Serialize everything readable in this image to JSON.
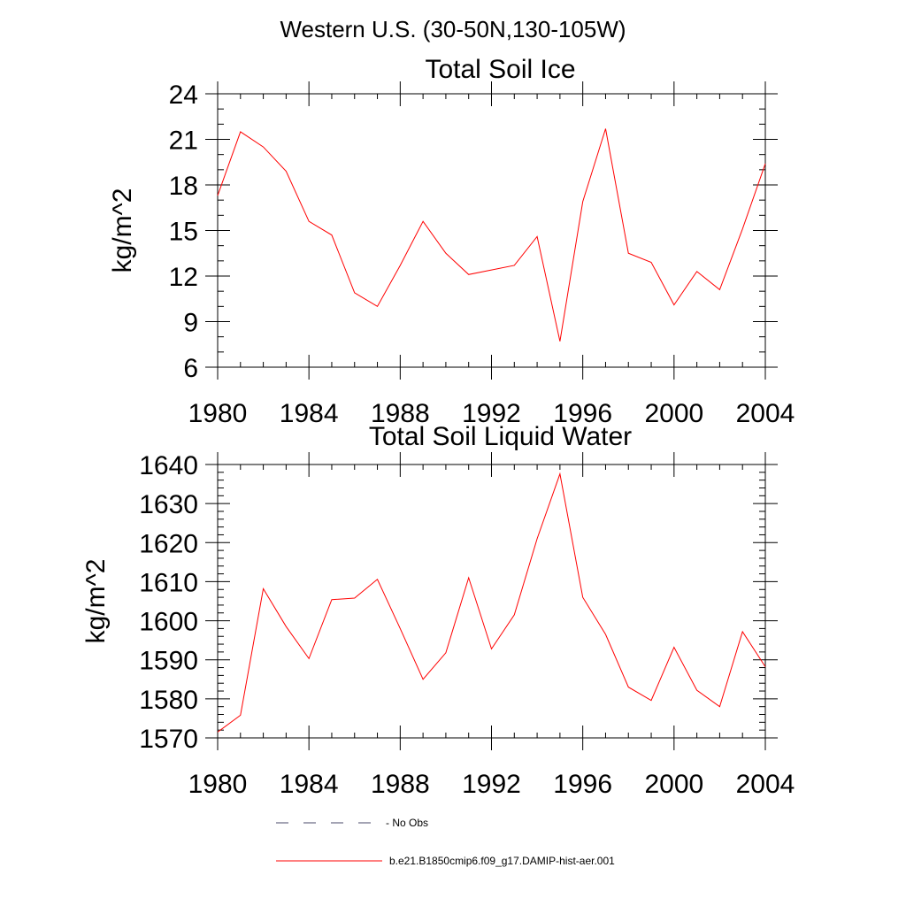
{
  "figure": {
    "title": "Western U.S. (30-50N,130-105W)"
  },
  "chart_data": [
    {
      "type": "line",
      "title": "Total Soil Ice",
      "xlabel": "",
      "ylabel": "kg/m^2",
      "xlim": [
        1980,
        2004
      ],
      "ylim": [
        6,
        24
      ],
      "xticks": [
        1980,
        1984,
        1988,
        1992,
        1996,
        2000,
        2004
      ],
      "xtick_labels": [
        "1980",
        "1984",
        "1988",
        "1992",
        "1996",
        "2000",
        "2004"
      ],
      "yticks": [
        6,
        9,
        12,
        15,
        18,
        21,
        24
      ],
      "ytick_labels": [
        "6",
        "9",
        "12",
        "15",
        "18",
        "21",
        "24"
      ],
      "y_minor_step": 1,
      "x_minor_step": 1,
      "series": [
        {
          "name": "b.e21.B1850cmip6.f09_g17.DAMIP-hist-aer.001",
          "color": "#ff0000",
          "x": [
            1980,
            1981,
            1982,
            1983,
            1984,
            1985,
            1986,
            1987,
            1988,
            1989,
            1990,
            1991,
            1992,
            1993,
            1994,
            1995,
            1996,
            1997,
            1998,
            1999,
            2000,
            2001,
            2002,
            2003,
            2004
          ],
          "values": [
            17.3,
            21.5,
            20.5,
            18.9,
            15.6,
            14.7,
            10.9,
            10.0,
            12.7,
            15.6,
            13.5,
            12.1,
            12.4,
            12.7,
            14.6,
            7.7,
            16.9,
            21.7,
            13.5,
            12.9,
            10.1,
            12.3,
            11.1,
            15.1,
            19.4
          ]
        }
      ]
    },
    {
      "type": "line",
      "title": "Total Soil Liquid Water",
      "xlabel": "",
      "ylabel": "kg/m^2",
      "xlim": [
        1980,
        2004
      ],
      "ylim": [
        1570,
        1640
      ],
      "xticks": [
        1980,
        1984,
        1988,
        1992,
        1996,
        2000,
        2004
      ],
      "xtick_labels": [
        "1980",
        "1984",
        "1988",
        "1992",
        "1996",
        "2000",
        "2004"
      ],
      "yticks": [
        1570,
        1580,
        1590,
        1600,
        1610,
        1620,
        1630,
        1640
      ],
      "ytick_labels": [
        "1570",
        "1580",
        "1590",
        "1600",
        "1610",
        "1620",
        "1630",
        "1640"
      ],
      "y_minor_step": 2,
      "x_minor_step": 1,
      "series": [
        {
          "name": "b.e21.B1850cmip6.f09_g17.DAMIP-hist-aer.001",
          "color": "#ff0000",
          "x": [
            1980,
            1981,
            1982,
            1983,
            1984,
            1985,
            1986,
            1987,
            1988,
            1989,
            1990,
            1991,
            1992,
            1993,
            1994,
            1995,
            1996,
            1997,
            1998,
            1999,
            2000,
            2001,
            2002,
            2003,
            2004
          ],
          "values": [
            1571.5,
            1575.8,
            1608.2,
            1598.5,
            1590.3,
            1605.4,
            1605.8,
            1610.6,
            1598.0,
            1585.0,
            1591.8,
            1611.0,
            1592.8,
            1601.5,
            1621.0,
            1637.6,
            1606.0,
            1596.5,
            1583.0,
            1579.6,
            1593.2,
            1582.2,
            1578.0,
            1597.2,
            1588.2
          ]
        }
      ]
    }
  ],
  "legend": {
    "placement": "bottom-center",
    "items": [
      {
        "label": "No Obs",
        "color": "#4a4a6a",
        "style": "dashed"
      },
      {
        "label": "b.e21.B1850cmip6.f09_g17.DAMIP-hist-aer.001",
        "color": "#ff0000",
        "style": "solid"
      }
    ]
  }
}
